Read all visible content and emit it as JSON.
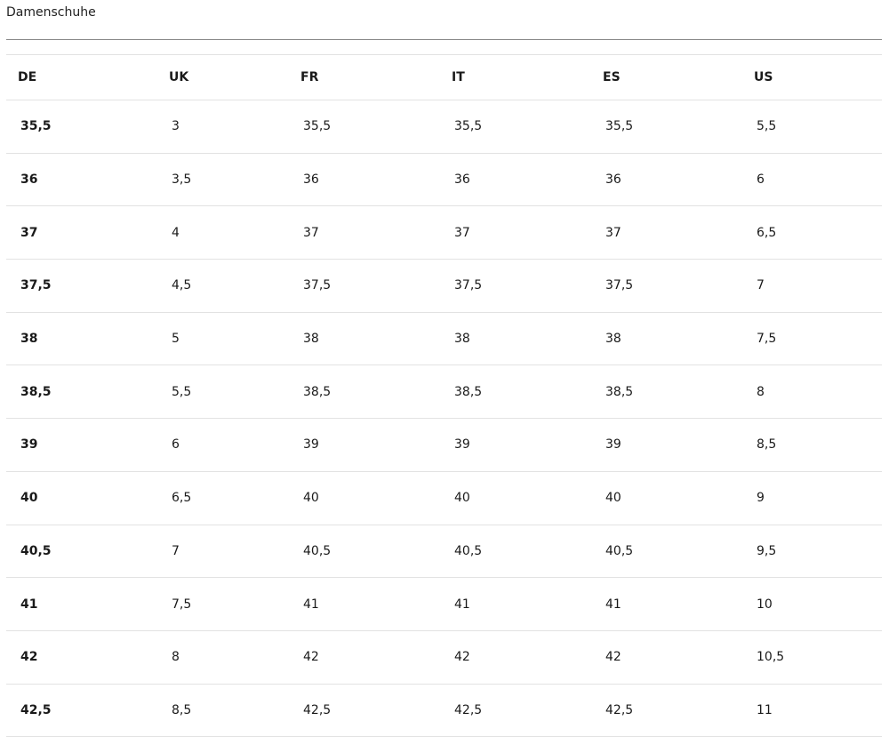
{
  "title": "Damenschuhe",
  "columns": [
    "DE",
    "UK",
    "FR",
    "IT",
    "ES",
    "US"
  ],
  "rows": [
    [
      "35,5",
      "3",
      "35,5",
      "35,5",
      "35,5",
      "5,5"
    ],
    [
      "36",
      "3,5",
      "36",
      "36",
      "36",
      "6"
    ],
    [
      "37",
      "4",
      "37",
      "37",
      "37",
      "6,5"
    ],
    [
      "37,5",
      "4,5",
      "37,5",
      "37,5",
      "37,5",
      "7"
    ],
    [
      "38",
      "5",
      "38",
      "38",
      "38",
      "7,5"
    ],
    [
      "38,5",
      "5,5",
      "38,5",
      "38,5",
      "38,5",
      "8"
    ],
    [
      "39",
      "6",
      "39",
      "39",
      "39",
      "8,5"
    ],
    [
      "40",
      "6,5",
      "40",
      "40",
      "40",
      "9"
    ],
    [
      "40,5",
      "7",
      "40,5",
      "40,5",
      "40,5",
      "9,5"
    ],
    [
      "41",
      "7,5",
      "41",
      "41",
      "41",
      "10"
    ],
    [
      "42",
      "8",
      "42",
      "42",
      "42",
      "10,5"
    ],
    [
      "42,5",
      "8,5",
      "42,5",
      "42,5",
      "42,5",
      "11"
    ]
  ]
}
